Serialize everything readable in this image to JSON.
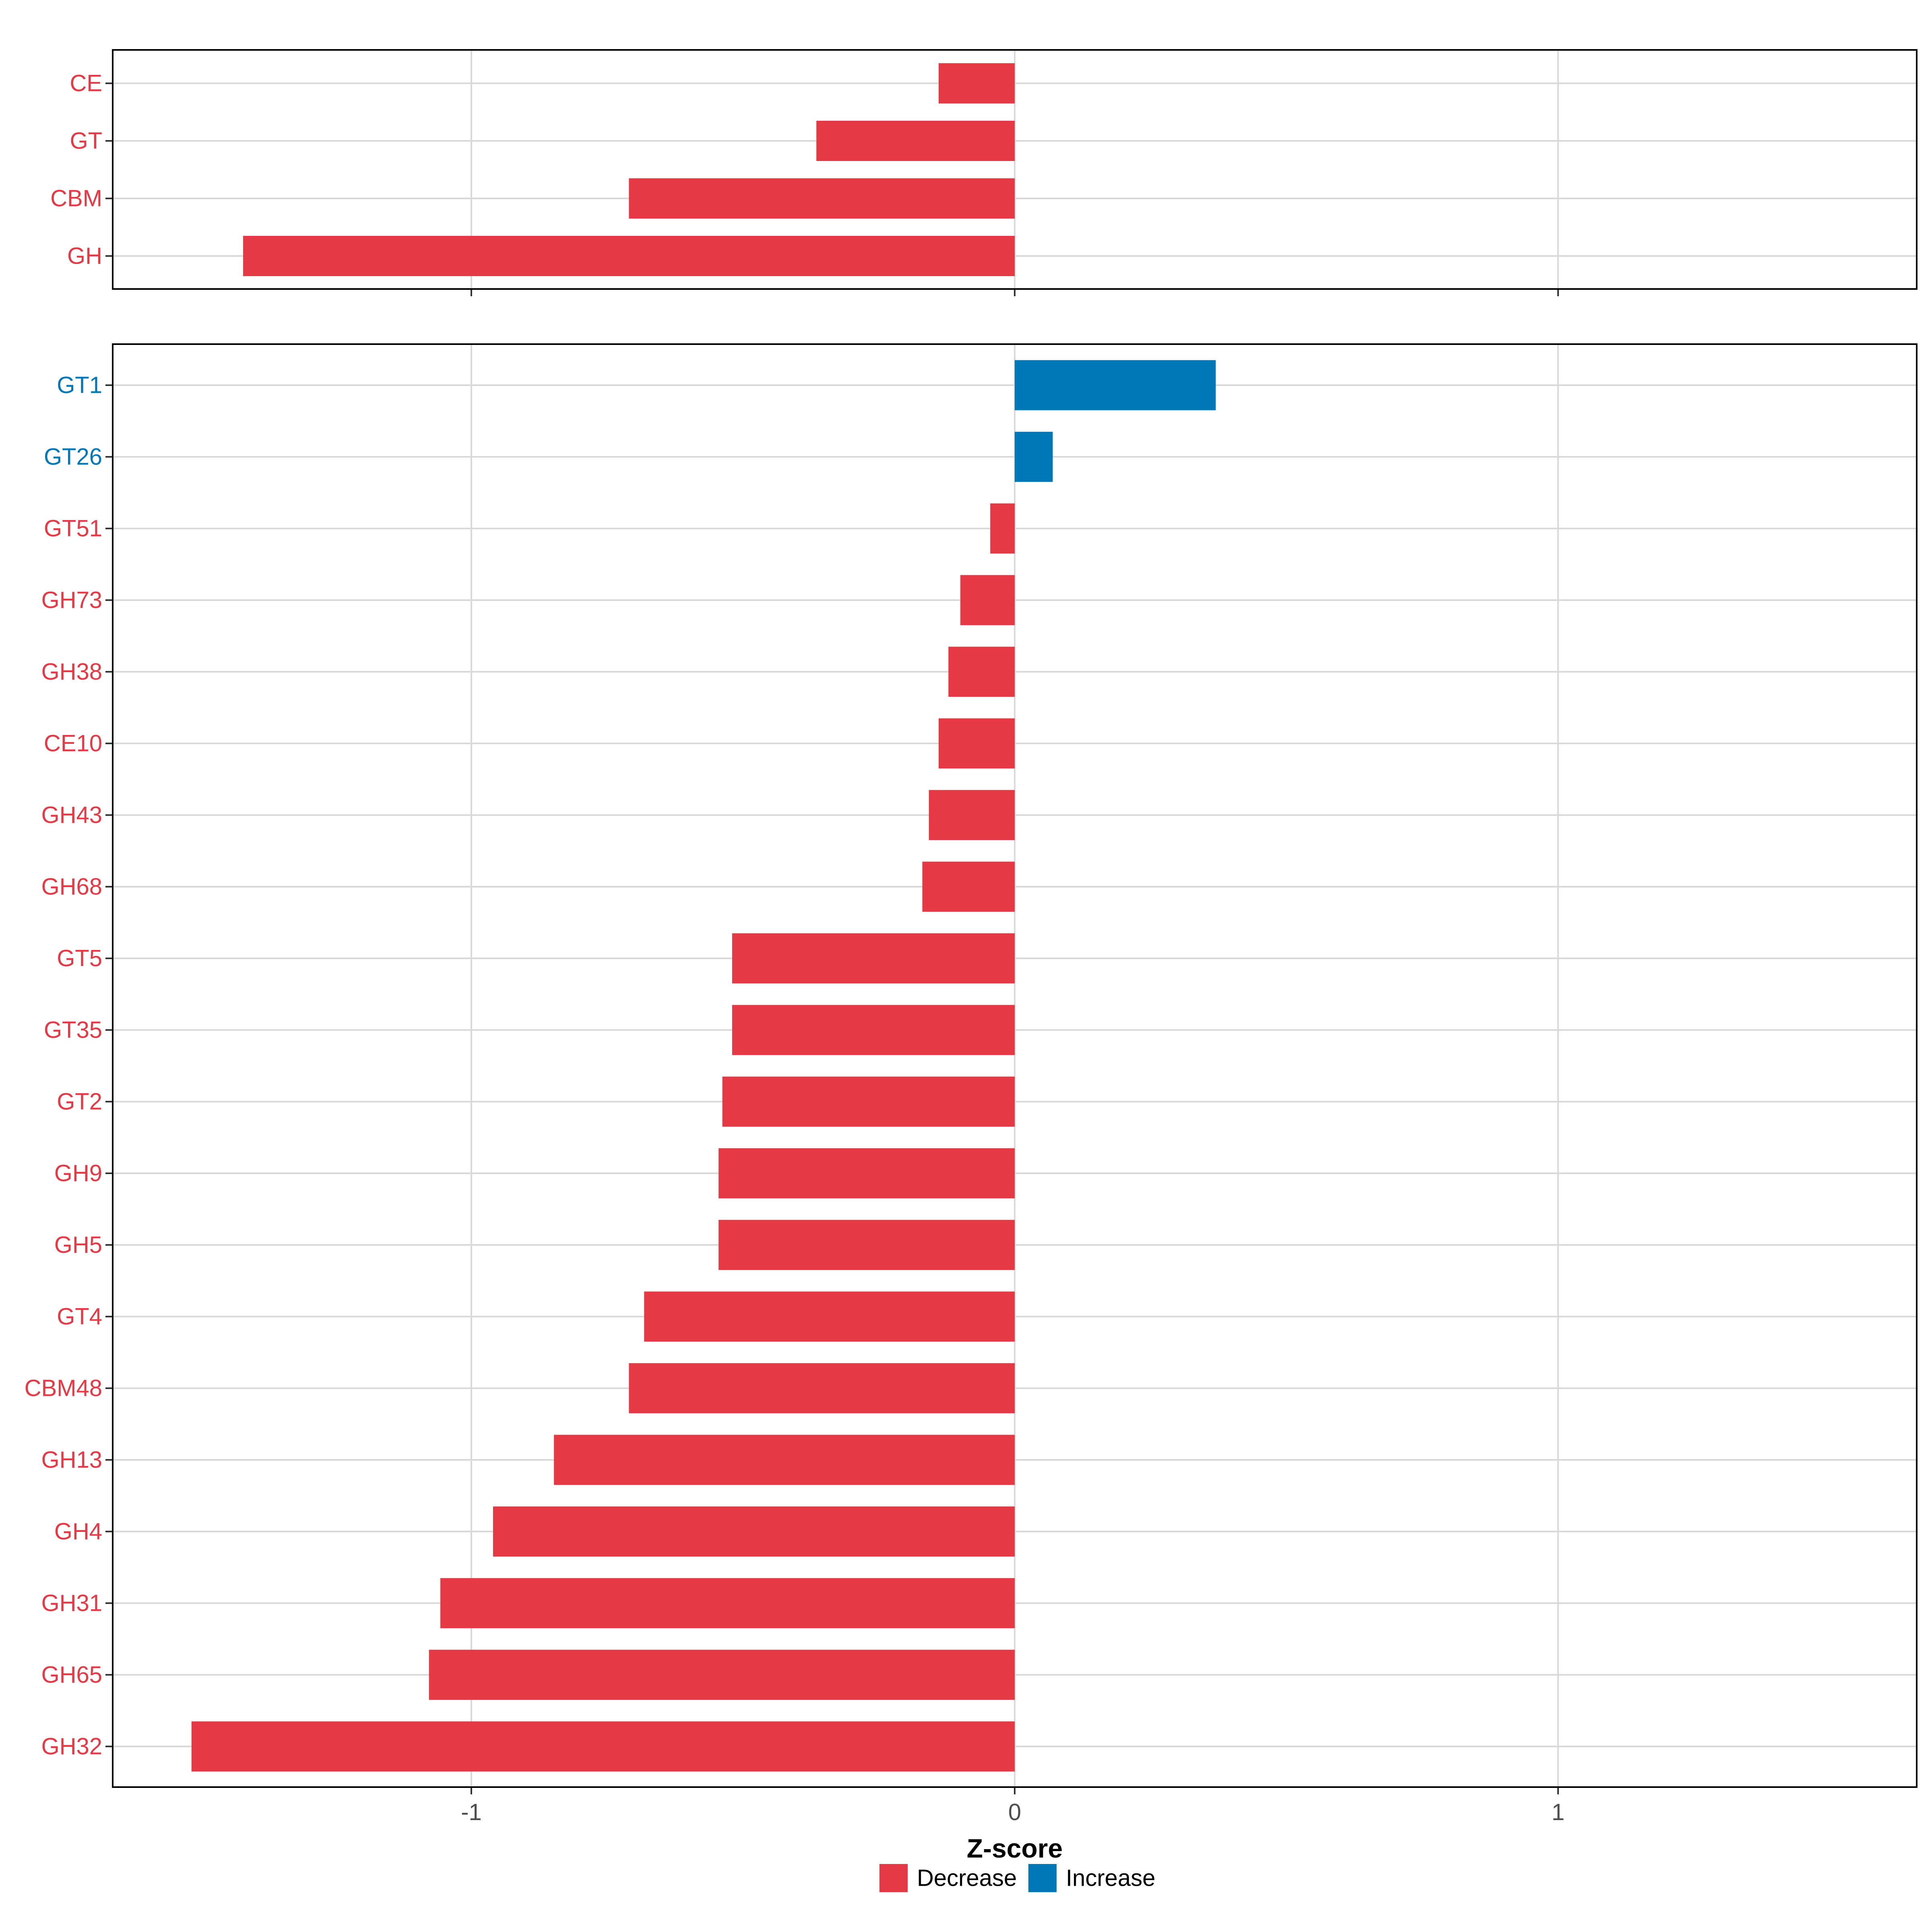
{
  "chart_data": {
    "type": "bar",
    "orientation": "horizontal",
    "xlabel": "Z-score",
    "xlim": [
      -1.66,
      1.66
    ],
    "xticks": [
      {
        "value": -1,
        "label": "-1"
      },
      {
        "value": 0,
        "label": "0"
      },
      {
        "value": 1,
        "label": "1"
      }
    ],
    "grid": true,
    "legend_position": "bottom",
    "legend": [
      {
        "key": "decrease",
        "label": "Decrease",
        "color": "#E63946"
      },
      {
        "key": "increase",
        "label": "Increase",
        "color": "#0077B6"
      }
    ],
    "panels": [
      {
        "name": "class",
        "bars": [
          {
            "category": "CE",
            "value": -0.14,
            "group": "decrease"
          },
          {
            "category": "GT",
            "value": -0.365,
            "group": "decrease"
          },
          {
            "category": "CBM",
            "value": -0.71,
            "group": "decrease"
          },
          {
            "category": "GH",
            "value": -1.42,
            "group": "decrease"
          }
        ]
      },
      {
        "name": "family",
        "bars": [
          {
            "category": "GT1",
            "value": 0.37,
            "group": "increase"
          },
          {
            "category": "GT26",
            "value": 0.07,
            "group": "increase"
          },
          {
            "category": "GT51",
            "value": -0.045,
            "group": "decrease"
          },
          {
            "category": "GH73",
            "value": -0.1,
            "group": "decrease"
          },
          {
            "category": "GH38",
            "value": -0.122,
            "group": "decrease"
          },
          {
            "category": "CE10",
            "value": -0.14,
            "group": "decrease"
          },
          {
            "category": "GH43",
            "value": -0.158,
            "group": "decrease"
          },
          {
            "category": "GH68",
            "value": -0.17,
            "group": "decrease"
          },
          {
            "category": "GT5",
            "value": -0.52,
            "group": "decrease"
          },
          {
            "category": "GT35",
            "value": -0.52,
            "group": "decrease"
          },
          {
            "category": "GT2",
            "value": -0.538,
            "group": "decrease"
          },
          {
            "category": "GH9",
            "value": -0.545,
            "group": "decrease"
          },
          {
            "category": "GH5",
            "value": -0.545,
            "group": "decrease"
          },
          {
            "category": "GT4",
            "value": -0.682,
            "group": "decrease"
          },
          {
            "category": "CBM48",
            "value": -0.71,
            "group": "decrease"
          },
          {
            "category": "GH13",
            "value": -0.848,
            "group": "decrease"
          },
          {
            "category": "GH4",
            "value": -0.96,
            "group": "decrease"
          },
          {
            "category": "GH31",
            "value": -1.057,
            "group": "decrease"
          },
          {
            "category": "GH65",
            "value": -1.078,
            "group": "decrease"
          },
          {
            "category": "GH32",
            "value": -1.515,
            "group": "decrease"
          }
        ]
      }
    ]
  }
}
